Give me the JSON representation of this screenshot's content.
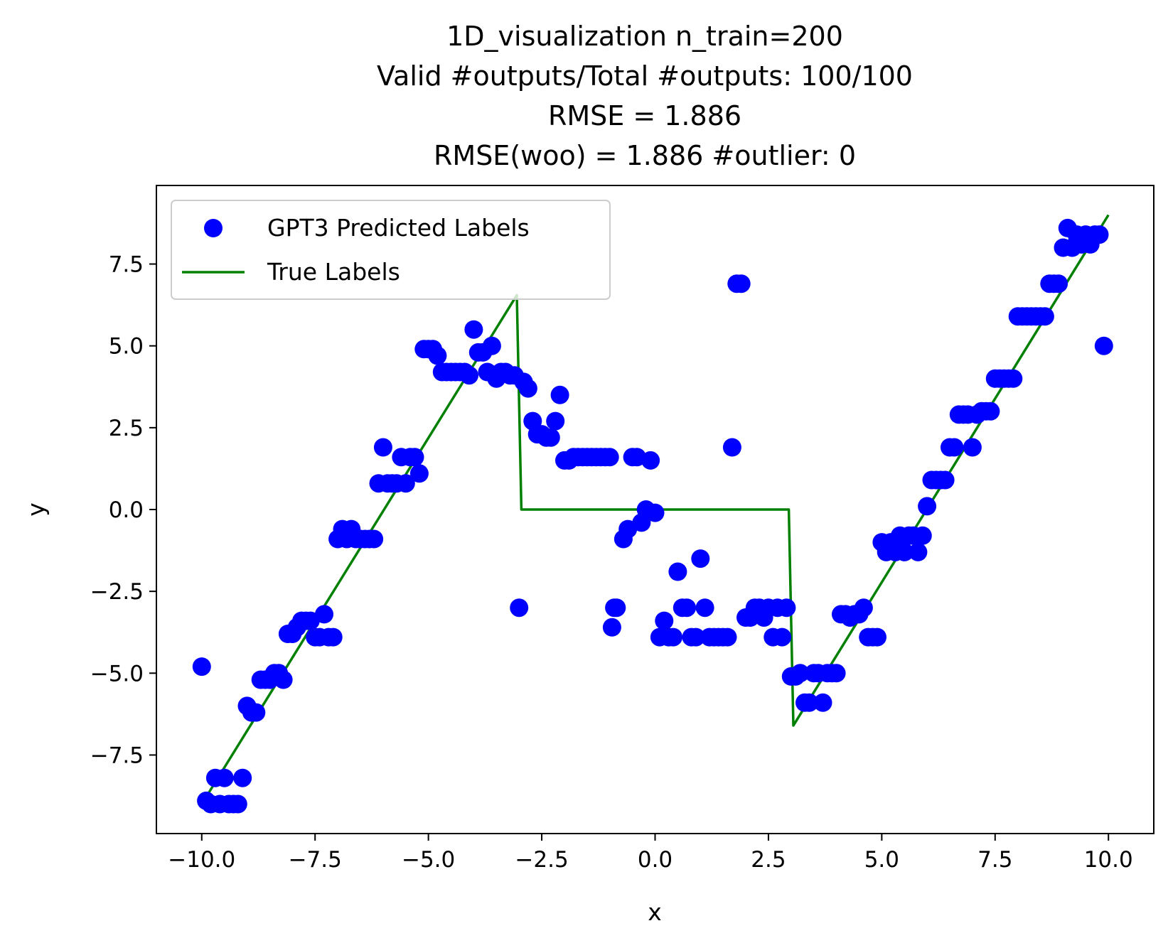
{
  "chart_data": {
    "type": "scatter",
    "title_lines": [
      "1D_visualization  n_train=200",
      "Valid #outputs/Total #outputs: 100/100",
      "RMSE       = 1.886",
      "RMSE(woo) = 1.886   #outlier: 0"
    ],
    "xlabel": "x",
    "ylabel": "y",
    "xlim": [
      -11.0,
      11.0
    ],
    "ylim": [
      -9.9,
      9.9
    ],
    "xticks": [
      -10.0,
      -7.5,
      -5.0,
      -2.5,
      0.0,
      2.5,
      5.0,
      7.5,
      10.0
    ],
    "xtick_labels": [
      "−10.0",
      "−7.5",
      "−5.0",
      "−2.5",
      "0.0",
      "2.5",
      "5.0",
      "7.5",
      "10.0"
    ],
    "yticks": [
      7.5,
      5.0,
      2.5,
      0.0,
      -2.5,
      -5.0,
      -7.5
    ],
    "ytick_labels": [
      "7.5",
      "5.0",
      "2.5",
      "0.0",
      "−2.5",
      "−5.0",
      "−7.5"
    ],
    "grid": false,
    "legend": {
      "position": "upper-left",
      "entries": [
        "GPT3 Predicted Labels",
        "True Labels"
      ]
    },
    "colors": {
      "predicted": "#0000ff",
      "true": "#008000"
    },
    "series": [
      {
        "name": "GPT3 Predicted Labels",
        "kind": "scatter",
        "points": [
          [
            -10.0,
            -4.8
          ],
          [
            -9.9,
            -8.9
          ],
          [
            -9.8,
            -9.0
          ],
          [
            -9.7,
            -8.2
          ],
          [
            -9.6,
            -9.0
          ],
          [
            -9.5,
            -8.2
          ],
          [
            -9.4,
            -9.0
          ],
          [
            -9.3,
            -9.0
          ],
          [
            -9.2,
            -9.0
          ],
          [
            -9.1,
            -8.2
          ],
          [
            -9.0,
            -6.0
          ],
          [
            -8.9,
            -6.2
          ],
          [
            -8.8,
            -6.2
          ],
          [
            -8.7,
            -5.2
          ],
          [
            -8.6,
            -5.2
          ],
          [
            -8.5,
            -5.2
          ],
          [
            -8.4,
            -5.0
          ],
          [
            -8.3,
            -5.0
          ],
          [
            -8.2,
            -5.2
          ],
          [
            -8.1,
            -3.8
          ],
          [
            -8.0,
            -3.8
          ],
          [
            -7.9,
            -3.6
          ],
          [
            -7.8,
            -3.4
          ],
          [
            -7.7,
            -3.4
          ],
          [
            -7.6,
            -3.4
          ],
          [
            -7.5,
            -3.9
          ],
          [
            -7.4,
            -3.9
          ],
          [
            -7.3,
            -3.2
          ],
          [
            -7.2,
            -3.9
          ],
          [
            -7.1,
            -3.9
          ],
          [
            -7.0,
            -0.9
          ],
          [
            -6.9,
            -0.6
          ],
          [
            -6.8,
            -0.9
          ],
          [
            -6.7,
            -0.6
          ],
          [
            -6.6,
            -0.9
          ],
          [
            -6.5,
            -0.9
          ],
          [
            -6.4,
            -0.9
          ],
          [
            -6.3,
            -0.9
          ],
          [
            -6.2,
            -0.9
          ],
          [
            -6.1,
            0.8
          ],
          [
            -6.0,
            1.9
          ],
          [
            -5.9,
            0.8
          ],
          [
            -5.8,
            0.8
          ],
          [
            -5.7,
            0.8
          ],
          [
            -5.6,
            1.6
          ],
          [
            -5.5,
            0.8
          ],
          [
            -5.4,
            1.6
          ],
          [
            -5.3,
            1.6
          ],
          [
            -5.2,
            1.1
          ],
          [
            -5.1,
            4.9
          ],
          [
            -5.0,
            4.9
          ],
          [
            -4.9,
            4.9
          ],
          [
            -4.8,
            4.7
          ],
          [
            -4.7,
            4.2
          ],
          [
            -4.6,
            4.2
          ],
          [
            -4.5,
            4.2
          ],
          [
            -4.4,
            4.2
          ],
          [
            -4.3,
            4.2
          ],
          [
            -4.2,
            4.2
          ],
          [
            -4.1,
            4.1
          ],
          [
            -4.0,
            5.5
          ],
          [
            -3.9,
            4.8
          ],
          [
            -3.8,
            4.8
          ],
          [
            -3.7,
            4.2
          ],
          [
            -3.6,
            5.0
          ],
          [
            -3.5,
            4.0
          ],
          [
            -3.4,
            4.2
          ],
          [
            -3.3,
            4.2
          ],
          [
            -3.2,
            4.1
          ],
          [
            -3.1,
            4.1
          ],
          [
            -3.0,
            -3.0
          ],
          [
            -2.9,
            3.9
          ],
          [
            -2.8,
            3.7
          ],
          [
            -2.7,
            2.7
          ],
          [
            -2.6,
            2.3
          ],
          [
            -2.5,
            2.3
          ],
          [
            -2.4,
            2.2
          ],
          [
            -2.3,
            2.2
          ],
          [
            -2.2,
            2.7
          ],
          [
            -2.1,
            3.5
          ],
          [
            -2.0,
            1.5
          ],
          [
            -1.9,
            1.5
          ],
          [
            -1.8,
            1.6
          ],
          [
            -1.7,
            1.6
          ],
          [
            -1.6,
            1.6
          ],
          [
            -1.5,
            1.6
          ],
          [
            -1.4,
            1.6
          ],
          [
            -1.3,
            1.6
          ],
          [
            -1.2,
            1.6
          ],
          [
            -1.1,
            1.6
          ],
          [
            -1.0,
            1.6
          ],
          [
            -0.95,
            -3.6
          ],
          [
            -0.9,
            -3.0
          ],
          [
            -0.85,
            -3.0
          ],
          [
            -0.7,
            -0.9
          ],
          [
            -0.6,
            -0.6
          ],
          [
            -0.5,
            1.6
          ],
          [
            -0.4,
            1.6
          ],
          [
            -0.3,
            -0.4
          ],
          [
            -0.2,
            0.0
          ],
          [
            -0.1,
            1.5
          ],
          [
            0.0,
            -0.1
          ],
          [
            0.1,
            -3.9
          ],
          [
            0.2,
            -3.4
          ],
          [
            0.3,
            -3.9
          ],
          [
            0.4,
            -3.9
          ],
          [
            0.5,
            -1.9
          ],
          [
            0.6,
            -3.0
          ],
          [
            0.7,
            -3.0
          ],
          [
            0.8,
            -3.9
          ],
          [
            0.9,
            -3.9
          ],
          [
            1.0,
            -1.5
          ],
          [
            1.1,
            -3.0
          ],
          [
            1.2,
            -3.9
          ],
          [
            1.3,
            -3.9
          ],
          [
            1.4,
            -3.9
          ],
          [
            1.5,
            -3.9
          ],
          [
            1.6,
            -3.9
          ],
          [
            1.7,
            1.9
          ],
          [
            1.8,
            6.9
          ],
          [
            1.9,
            6.9
          ],
          [
            2.0,
            -3.3
          ],
          [
            2.1,
            -3.3
          ],
          [
            2.2,
            -3.0
          ],
          [
            2.3,
            -3.0
          ],
          [
            2.4,
            -3.3
          ],
          [
            2.5,
            -3.0
          ],
          [
            2.6,
            -3.9
          ],
          [
            2.7,
            -3.0
          ],
          [
            2.8,
            -3.9
          ],
          [
            2.9,
            -3.0
          ],
          [
            3.0,
            -5.1
          ],
          [
            3.1,
            -5.1
          ],
          [
            3.2,
            -5.0
          ],
          [
            3.3,
            -5.9
          ],
          [
            3.4,
            -5.9
          ],
          [
            3.5,
            -5.0
          ],
          [
            3.6,
            -5.0
          ],
          [
            3.7,
            -5.9
          ],
          [
            3.8,
            -5.0
          ],
          [
            3.9,
            -5.0
          ],
          [
            4.0,
            -5.0
          ],
          [
            4.1,
            -3.2
          ],
          [
            4.2,
            -3.2
          ],
          [
            4.3,
            -3.3
          ],
          [
            4.4,
            -3.2
          ],
          [
            4.5,
            -3.2
          ],
          [
            4.6,
            -3.0
          ],
          [
            4.7,
            -3.9
          ],
          [
            4.8,
            -3.9
          ],
          [
            4.9,
            -3.9
          ],
          [
            5.0,
            -1.0
          ],
          [
            5.1,
            -1.3
          ],
          [
            5.2,
            -1.0
          ],
          [
            5.3,
            -1.3
          ],
          [
            5.4,
            -0.8
          ],
          [
            5.5,
            -1.3
          ],
          [
            5.6,
            -0.8
          ],
          [
            5.7,
            -0.8
          ],
          [
            5.8,
            -1.3
          ],
          [
            5.9,
            -0.8
          ],
          [
            6.0,
            0.1
          ],
          [
            6.1,
            0.9
          ],
          [
            6.2,
            0.9
          ],
          [
            6.3,
            0.9
          ],
          [
            6.4,
            0.9
          ],
          [
            6.5,
            1.9
          ],
          [
            6.6,
            1.9
          ],
          [
            6.7,
            2.9
          ],
          [
            6.8,
            2.9
          ],
          [
            6.9,
            2.9
          ],
          [
            7.0,
            1.9
          ],
          [
            7.1,
            2.9
          ],
          [
            7.2,
            3.0
          ],
          [
            7.3,
            3.0
          ],
          [
            7.4,
            3.0
          ],
          [
            7.5,
            4.0
          ],
          [
            7.6,
            4.0
          ],
          [
            7.7,
            4.0
          ],
          [
            7.8,
            4.0
          ],
          [
            7.9,
            4.0
          ],
          [
            8.0,
            5.9
          ],
          [
            8.1,
            5.9
          ],
          [
            8.2,
            5.9
          ],
          [
            8.3,
            5.9
          ],
          [
            8.4,
            5.9
          ],
          [
            8.5,
            5.9
          ],
          [
            8.6,
            5.9
          ],
          [
            8.7,
            6.9
          ],
          [
            8.8,
            6.9
          ],
          [
            8.9,
            6.9
          ],
          [
            9.0,
            8.0
          ],
          [
            9.1,
            8.6
          ],
          [
            9.2,
            8.0
          ],
          [
            9.3,
            8.4
          ],
          [
            9.4,
            8.1
          ],
          [
            9.5,
            8.4
          ],
          [
            9.6,
            8.1
          ],
          [
            9.7,
            8.4
          ],
          [
            9.8,
            8.4
          ],
          [
            9.9,
            5.0
          ]
        ]
      },
      {
        "name": "True Labels",
        "kind": "line",
        "points": [
          [
            -10.0,
            -9.0
          ],
          [
            -3.05,
            6.55
          ],
          [
            -2.95,
            0.0
          ],
          [
            2.95,
            0.0
          ],
          [
            3.05,
            -6.6
          ],
          [
            10.0,
            9.0
          ]
        ]
      }
    ]
  }
}
